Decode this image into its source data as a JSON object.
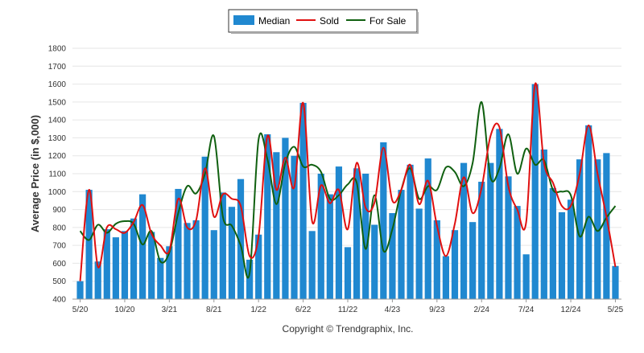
{
  "chart_data": {
    "type": "bar",
    "ylabel": "Average Price (in $,000)",
    "ylim": [
      400,
      1800
    ],
    "yticks": [
      400,
      500,
      600,
      700,
      800,
      900,
      1000,
      1100,
      1200,
      1300,
      1400,
      1500,
      1600,
      1700,
      1800
    ],
    "xtick_labels": [
      "5/20",
      "10/20",
      "3/21",
      "8/21",
      "1/22",
      "6/22",
      "11/22",
      "4/23",
      "9/23",
      "2/24",
      "7/24",
      "12/24",
      "5/25"
    ],
    "categories": [
      "5/20",
      "6/20",
      "7/20",
      "8/20",
      "9/20",
      "10/20",
      "11/20",
      "12/20",
      "1/21",
      "2/21",
      "3/21",
      "4/21",
      "5/21",
      "6/21",
      "7/21",
      "8/21",
      "9/21",
      "10/21",
      "11/21",
      "12/21",
      "1/22",
      "2/22",
      "3/22",
      "4/22",
      "5/22",
      "6/22",
      "7/22",
      "8/22",
      "9/22",
      "10/22",
      "11/22",
      "12/22",
      "1/23",
      "2/23",
      "3/23",
      "4/23",
      "5/23",
      "6/23",
      "7/23",
      "8/23",
      "9/23",
      "10/23",
      "11/23",
      "12/23",
      "1/24",
      "2/24",
      "3/24",
      "4/24",
      "5/24",
      "6/24",
      "7/24",
      "8/24",
      "9/24",
      "10/24",
      "11/24",
      "12/24",
      "1/25",
      "2/25",
      "3/25",
      "4/25",
      "5/25"
    ],
    "grid": true,
    "legend_position": "top-center",
    "series": [
      {
        "name": "Median",
        "type": "bar",
        "color": "#2088d0",
        "values": [
          500,
          1010,
          610,
          790,
          745,
          780,
          850,
          985,
          775,
          630,
          695,
          1015,
          825,
          840,
          1195,
          785,
          995,
          915,
          1070,
          620,
          760,
          1320,
          1220,
          1300,
          1200,
          1495,
          780,
          1100,
          985,
          1140,
          690,
          1130,
          1100,
          815,
          1275,
          880,
          1010,
          1150,
          905,
          1185,
          840,
          640,
          785,
          1160,
          830,
          1055,
          1160,
          1350,
          1085,
          920,
          650,
          1600,
          1235,
          1020,
          885,
          955,
          1180,
          1370,
          1180,
          1215,
          585
        ]
      },
      {
        "name": "Sold",
        "type": "line",
        "color": "#e01010",
        "values": [
          500,
          1010,
          580,
          800,
          790,
          770,
          830,
          925,
          765,
          700,
          670,
          960,
          800,
          840,
          1130,
          860,
          985,
          960,
          920,
          640,
          750,
          1310,
          1010,
          1190,
          1025,
          1495,
          835,
          1035,
          935,
          1010,
          790,
          1160,
          910,
          940,
          1245,
          950,
          1010,
          1150,
          930,
          1060,
          810,
          640,
          820,
          1080,
          880,
          1020,
          1310,
          1360,
          1030,
          900,
          830,
          1600,
          1160,
          1050,
          920,
          920,
          1100,
          1370,
          1100,
          860,
          580
        ]
      },
      {
        "name": "For Sale",
        "type": "line",
        "color": "#106010",
        "values": [
          780,
          730,
          815,
          770,
          820,
          835,
          820,
          705,
          780,
          610,
          660,
          880,
          1030,
          990,
          1100,
          1310,
          860,
          810,
          700,
          545,
          1290,
          1180,
          930,
          1160,
          1250,
          1140,
          1150,
          1110,
          960,
          980,
          1040,
          1050,
          680,
          980,
          670,
          790,
          1010,
          1130,
          960,
          1030,
          1010,
          1135,
          1110,
          1030,
          1160,
          1500,
          1080,
          1130,
          1320,
          1100,
          1240,
          1150,
          1175,
          1010,
          1000,
          980,
          750,
          860,
          780,
          855,
          920
        ]
      }
    ]
  },
  "footer": {
    "copyright": "Copyright © Trendgraphix, Inc."
  }
}
